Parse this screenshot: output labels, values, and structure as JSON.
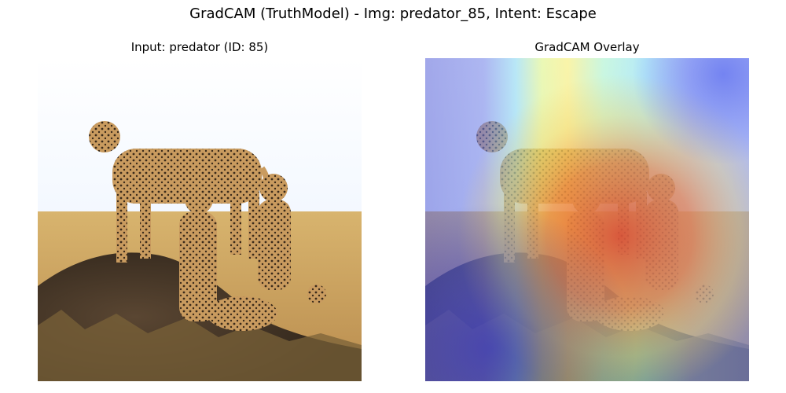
{
  "figure": {
    "title": "GradCAM (TruthModel) - Img: predator_85, Intent: Escape"
  },
  "panels": [
    {
      "title": "Input: predator (ID: 85)"
    },
    {
      "title": "GradCAM Overlay"
    }
  ],
  "colors": {
    "sky": "#f7fbff",
    "grass": "#c9a15e",
    "mound": "#4b3a2a",
    "cheetah": "#c79b5e",
    "heatmap_hot": "#e0603a",
    "heatmap_warm": "#f2ef6a",
    "heatmap_cool": "#8fe0f0",
    "heatmap_cold": "#8a8ee8"
  }
}
